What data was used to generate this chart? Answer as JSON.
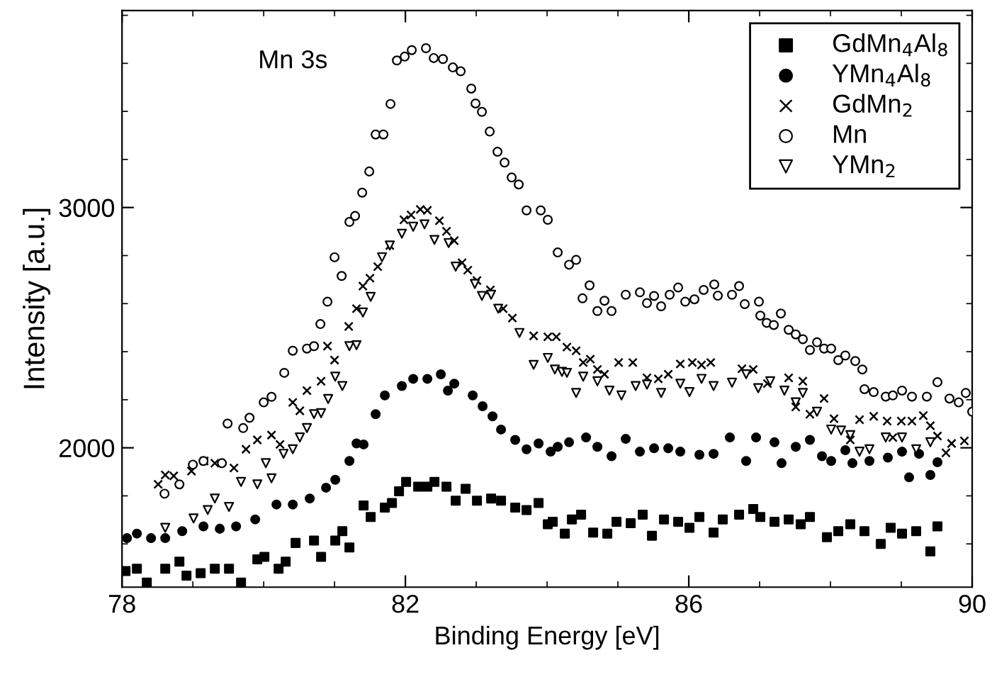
{
  "chart_data": {
    "type": "scatter",
    "xlabel": "Binding Energy [eV]",
    "ylabel": "Intensity [a.u.]",
    "annotations": [
      "Mn 3s"
    ],
    "xlim": [
      78,
      90
    ],
    "xticks": [
      78,
      82,
      86,
      90
    ],
    "ylim": [
      1420,
      3820
    ],
    "yticks": [
      2000,
      3000
    ],
    "grid": false,
    "legend": "top right",
    "series": [
      {
        "name": "GdMn$_{4}$Al$_{8}$",
        "color": "#000000",
        "marker": "square",
        "x": [
          78.05,
          78.21,
          78.35,
          78.61,
          78.81,
          78.91,
          79.11,
          79.31,
          79.51,
          79.68,
          79.91,
          80.01,
          80.21,
          80.31,
          80.45,
          80.71,
          80.81,
          81.01,
          81.11,
          81.21,
          81.41,
          81.51,
          81.71,
          81.81,
          81.91,
          82.01,
          82.18,
          82.31,
          82.41,
          82.58,
          82.71,
          82.85,
          83.01,
          83.21,
          83.35,
          83.55,
          83.71,
          83.88,
          84.01,
          84.08,
          84.25,
          84.35,
          84.48,
          84.65,
          84.85,
          84.98,
          85.18,
          85.35,
          85.48,
          85.65,
          85.85,
          86.01,
          86.15,
          86.35,
          86.48,
          86.71,
          86.91,
          87.01,
          87.21,
          87.41,
          87.58,
          87.71,
          87.95,
          88.11,
          88.28,
          88.48,
          88.71,
          88.85,
          89.01,
          89.21,
          89.41,
          89.51
        ],
        "values": [
          1487,
          1497,
          1439,
          1497,
          1526,
          1468,
          1478,
          1497,
          1497,
          1439,
          1536,
          1546,
          1497,
          1526,
          1604,
          1614,
          1546,
          1614,
          1653,
          1585,
          1760,
          1712,
          1751,
          1770,
          1819,
          1858,
          1838,
          1838,
          1858,
          1838,
          1780,
          1829,
          1780,
          1789,
          1780,
          1751,
          1741,
          1770,
          1682,
          1692,
          1643,
          1702,
          1722,
          1647,
          1643,
          1692,
          1686,
          1722,
          1634,
          1702,
          1692,
          1667,
          1712,
          1647,
          1702,
          1722,
          1745,
          1712,
          1692,
          1702,
          1682,
          1712,
          1628,
          1653,
          1682,
          1653,
          1600,
          1667,
          1643,
          1653,
          1569,
          1673
        ]
      },
      {
        "name": "YMn$_{4}$Al$_{8}$",
        "color": "#000000",
        "marker": "circle",
        "x": [
          78.07,
          78.21,
          78.41,
          78.61,
          78.85,
          79.15,
          79.38,
          79.61,
          79.88,
          80.18,
          80.41,
          80.65,
          80.88,
          81.01,
          81.21,
          81.31,
          81.41,
          81.58,
          81.71,
          81.95,
          82.11,
          82.31,
          82.5,
          82.6,
          82.69,
          82.95,
          83.09,
          83.23,
          83.35,
          83.55,
          83.71,
          83.88,
          84.05,
          84.15,
          84.31,
          84.55,
          84.71,
          84.91,
          85.11,
          85.31,
          85.51,
          85.71,
          85.88,
          86.15,
          86.35,
          86.58,
          86.81,
          86.95,
          87.21,
          87.31,
          87.51,
          87.71,
          87.88,
          88.01,
          88.21,
          88.31,
          88.55,
          88.81,
          89.01,
          89.11,
          89.25,
          89.41,
          89.51
        ],
        "values": [
          1624,
          1643,
          1624,
          1624,
          1653,
          1673,
          1663,
          1673,
          1702,
          1764,
          1764,
          1789,
          1834,
          1867,
          1945,
          2018,
          2014,
          2140,
          2218,
          2257,
          2287,
          2287,
          2306,
          2238,
          2267,
          2218,
          2173,
          2131,
          2076,
          2033,
          1994,
          2018,
          1984,
          2004,
          2023,
          2043,
          2004,
          1965,
          2037,
          1984,
          1998,
          1998,
          1984,
          1971,
          1975,
          2043,
          1945,
          2043,
          2023,
          1936,
          2004,
          2033,
          1965,
          1945,
          1990,
          1936,
          1945,
          1959,
          1984,
          1877,
          1975,
          1887,
          1940
        ]
      },
      {
        "name": "GdMn$_{2}$",
        "color": "#000000",
        "marker": "cross",
        "x": [
          78.51,
          78.61,
          78.73,
          78.98,
          79.16,
          79.31,
          79.58,
          79.75,
          79.91,
          80.11,
          80.23,
          80.41,
          80.51,
          80.61,
          80.81,
          80.9,
          81.0,
          81.2,
          81.31,
          81.4,
          81.5,
          81.61,
          81.78,
          81.98,
          82.08,
          82.21,
          82.31,
          82.48,
          82.58,
          82.69,
          82.8,
          82.88,
          83.01,
          83.2,
          83.38,
          83.51,
          83.81,
          84.01,
          84.13,
          84.28,
          84.41,
          84.51,
          84.61,
          84.71,
          84.81,
          85.01,
          85.21,
          85.41,
          85.57,
          85.71,
          85.88,
          86.05,
          86.18,
          86.31,
          86.75,
          86.91,
          87.11,
          87.41,
          87.51,
          87.61,
          87.71,
          87.91,
          88.05,
          88.28,
          88.41,
          88.61,
          88.8,
          88.88,
          89.0,
          89.15,
          89.31,
          89.41,
          89.51,
          89.63,
          89.71,
          89.89
        ],
        "values": [
          1848,
          1887,
          1883,
          1903,
          1945,
          1936,
          1916,
          1994,
          2033,
          2053,
          2014,
          2189,
          2154,
          2238,
          2277,
          2423,
          2365,
          2505,
          2579,
          2673,
          2706,
          2754,
          2842,
          2949,
          2969,
          2992,
          2988,
          2945,
          2901,
          2862,
          2770,
          2739,
          2696,
          2657,
          2579,
          2540,
          2466,
          2462,
          2462,
          2419,
          2404,
          2355,
          2369,
          2326,
          2306,
          2355,
          2355,
          2291,
          2287,
          2306,
          2349,
          2355,
          2345,
          2355,
          2329,
          2326,
          2267,
          2291,
          2170,
          2277,
          2140,
          2205,
          2121,
          2033,
          2117,
          2131,
          2111,
          2043,
          2111,
          2111,
          2134,
          2092,
          2049,
          1979,
          2018,
          2029
        ]
      },
      {
        "name": "Mn",
        "color": "#ffffff",
        "marker": "circle",
        "x": [
          78.6,
          78.81,
          79.0,
          79.15,
          79.41,
          79.49,
          79.71,
          79.8,
          80.0,
          80.11,
          80.29,
          80.41,
          80.61,
          80.71,
          80.8,
          80.9,
          81.0,
          81.1,
          81.21,
          81.29,
          81.39,
          81.49,
          81.58,
          81.69,
          81.79,
          81.88,
          81.99,
          82.09,
          82.29,
          82.4,
          82.53,
          82.67,
          82.78,
          82.93,
          82.99,
          83.08,
          83.19,
          83.3,
          83.4,
          83.5,
          83.6,
          83.71,
          83.91,
          84.01,
          84.15,
          84.31,
          84.41,
          84.5,
          84.6,
          84.71,
          84.81,
          84.91,
          85.11,
          85.31,
          85.41,
          85.51,
          85.61,
          85.73,
          85.85,
          85.95,
          86.08,
          86.21,
          86.36,
          86.41,
          86.61,
          86.71,
          86.79,
          86.99,
          87.01,
          87.1,
          87.2,
          87.3,
          87.41,
          87.51,
          87.61,
          87.71,
          87.81,
          87.91,
          88.01,
          88.11,
          88.21,
          88.35,
          88.45,
          88.48,
          88.61,
          88.78,
          88.88,
          89.01,
          89.15,
          89.36,
          89.51,
          89.68,
          89.81,
          89.91,
          90.0
        ],
        "values": [
          1809,
          1848,
          1930,
          1945,
          1936,
          2101,
          2082,
          2125,
          2189,
          2212,
          2312,
          2404,
          2413,
          2423,
          2515,
          2608,
          2793,
          2715,
          2940,
          2965,
          3062,
          3150,
          3304,
          3304,
          3431,
          3612,
          3628,
          3655,
          3663,
          3622,
          3618,
          3583,
          3567,
          3495,
          3433,
          3398,
          3316,
          3232,
          3187,
          3125,
          3096,
          2988,
          2988,
          2949,
          2813,
          2762,
          2782,
          2622,
          2676,
          2569,
          2612,
          2569,
          2637,
          2647,
          2602,
          2632,
          2589,
          2637,
          2667,
          2608,
          2618,
          2657,
          2680,
          2633,
          2637,
          2673,
          2598,
          2608,
          2550,
          2520,
          2511,
          2559,
          2491,
          2472,
          2452,
          2407,
          2439,
          2413,
          2413,
          2365,
          2384,
          2361,
          2326,
          2244,
          2232,
          2213,
          2218,
          2238,
          2213,
          2213,
          2273,
          2205,
          2189,
          2228,
          2150
        ]
      },
      {
        "name": "YMn$_{2}$",
        "color": "#ffffff",
        "marker": "triangle",
        "x": [
          78.61,
          79.01,
          79.21,
          79.31,
          79.51,
          79.68,
          79.91,
          80.03,
          80.11,
          80.28,
          80.41,
          80.51,
          80.61,
          80.71,
          80.81,
          80.91,
          81.01,
          81.11,
          81.21,
          81.31,
          81.4,
          81.51,
          81.67,
          81.78,
          81.95,
          82.11,
          82.27,
          82.41,
          82.61,
          82.71,
          82.98,
          83.08,
          83.21,
          83.31,
          83.61,
          83.81,
          84.01,
          84.11,
          84.21,
          84.28,
          84.41,
          84.51,
          84.71,
          84.88,
          85.05,
          85.25,
          85.41,
          85.61,
          85.88,
          86.01,
          86.18,
          86.35,
          86.61,
          86.81,
          86.98,
          87.15,
          87.35,
          87.51,
          87.61,
          87.81,
          88.01,
          88.15,
          88.28,
          88.41,
          88.55,
          88.78,
          89.01,
          89.21,
          89.41
        ],
        "values": [
          1667,
          1706,
          1741,
          1789,
          1754,
          1858,
          1848,
          1936,
          1873,
          1975,
          1994,
          2043,
          2082,
          2140,
          2144,
          2203,
          2296,
          2257,
          2423,
          2427,
          2563,
          2628,
          2793,
          2842,
          2891,
          2920,
          2930,
          2865,
          2852,
          2754,
          2682,
          2632,
          2637,
          2579,
          2478,
          2345,
          2374,
          2326,
          2316,
          2312,
          2228,
          2296,
          2277,
          2238,
          2218,
          2257,
          2263,
          2228,
          2267,
          2232,
          2287,
          2257,
          2271,
          2306,
          2248,
          2277,
          2238,
          2189,
          2228,
          2150,
          2076,
          2072,
          2053,
          1984,
          1994,
          2043,
          2043,
          1994,
          2023
        ]
      }
    ]
  }
}
